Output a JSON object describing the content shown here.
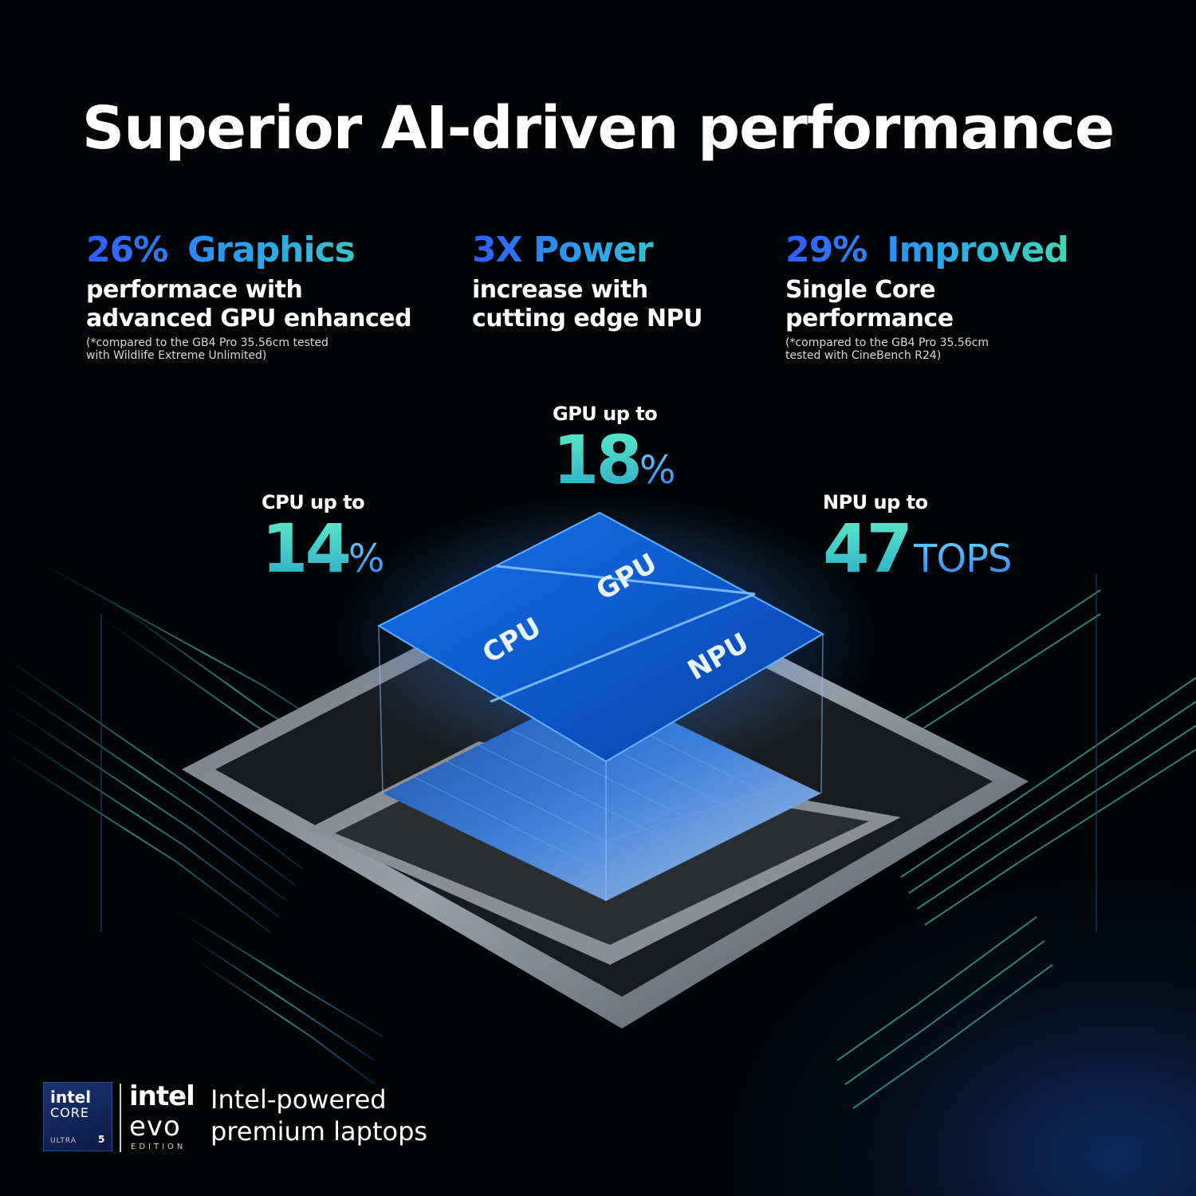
{
  "headline": "Superior AI-driven performance",
  "stats": [
    {
      "value": "26%",
      "mark": "*",
      "title": "Graphics",
      "desc_1": "performace with",
      "desc_2": "advanced GPU enhanced",
      "note_1": "(*compared to the GB4 Pro 35.56cm  tested",
      "note_2": "with Wildlife Extreme Unlimited)"
    },
    {
      "value": "3X",
      "mark": "",
      "title": "Power",
      "desc_1": "increase with",
      "desc_2": "cutting edge NPU",
      "note_1": "",
      "note_2": ""
    },
    {
      "value": "29%",
      "mark": "*",
      "title": "Improved",
      "desc_1": "Single Core",
      "desc_2": "performance",
      "note_1": "(*compared to the GB4 Pro 35.56cm",
      "note_2": "tested with CineBench R24)"
    }
  ],
  "metrics": {
    "gpu": {
      "label": "GPU up to",
      "value": "18",
      "unit": "%"
    },
    "cpu": {
      "label": "CPU up to",
      "value": "14",
      "unit": "%"
    },
    "npu": {
      "label": "NPU up to",
      "value": "47",
      "unit": "TOPS"
    }
  },
  "chip_labels": {
    "cpu": "CPU",
    "gpu": "GPU",
    "npu": "NPU"
  },
  "footer": {
    "badge_brand": "intel",
    "badge_line": "CORE",
    "badge_tier": "ULTRA",
    "badge_number": "5",
    "logo_brand": "intel",
    "logo_product": "evo",
    "logo_edition": "EDITION",
    "tagline_1": "Intel-powered",
    "tagline_2": "premium laptops"
  },
  "colors": {
    "background": "#030406",
    "accent_blue": "#2f5cff",
    "accent_teal": "#3fd6b6",
    "chip_blue": "#1e78e6"
  }
}
